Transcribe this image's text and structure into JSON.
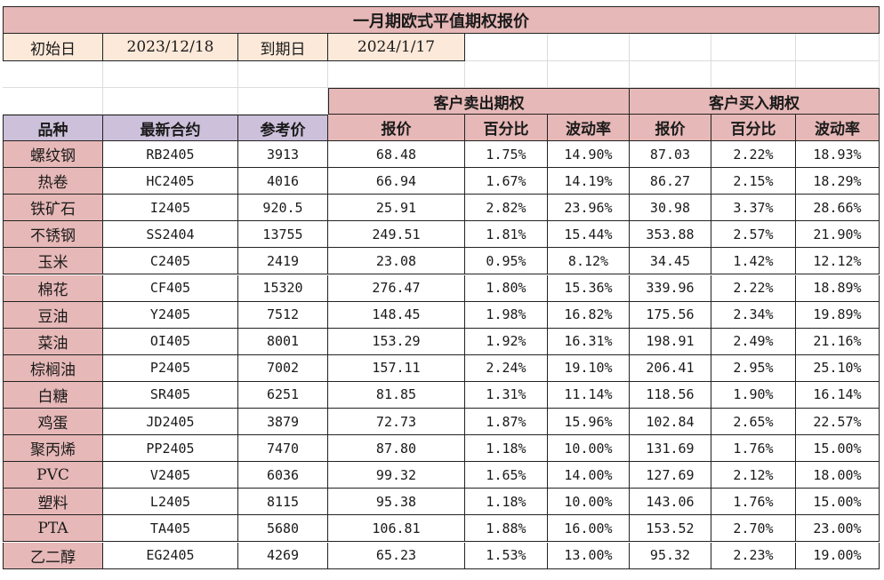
{
  "title": "一月期欧式平值期权报价",
  "meta": {
    "start_label": "初始日",
    "start_value": "2023/12/18",
    "expiry_label": "到期日",
    "expiry_value": "2024/1/17"
  },
  "groups": {
    "sell": "客户卖出期权",
    "buy": "客户买入期权"
  },
  "headers": [
    "品种",
    "最新合约",
    "参考价",
    "报价",
    "百分比",
    "波动率",
    "报价",
    "百分比",
    "波动率"
  ],
  "rows": [
    [
      "螺纹钢",
      "RB2405",
      "3913",
      "68.48",
      "1.75%",
      "14.90%",
      "87.03",
      "2.22%",
      "18.93%"
    ],
    [
      "热卷",
      "HC2405",
      "4016",
      "66.94",
      "1.67%",
      "14.19%",
      "86.27",
      "2.15%",
      "18.29%"
    ],
    [
      "铁矿石",
      "I2405",
      "920.5",
      "25.91",
      "2.82%",
      "23.96%",
      "30.98",
      "3.37%",
      "28.66%"
    ],
    [
      "不锈钢",
      "SS2404",
      "13755",
      "249.51",
      "1.81%",
      "15.44%",
      "353.88",
      "2.57%",
      "21.90%"
    ],
    [
      "玉米",
      "C2405",
      "2419",
      "23.08",
      "0.95%",
      "8.12%",
      "34.45",
      "1.42%",
      "12.12%"
    ],
    [
      "棉花",
      "CF405",
      "15320",
      "276.47",
      "1.80%",
      "15.36%",
      "339.96",
      "2.22%",
      "18.89%"
    ],
    [
      "豆油",
      "Y2405",
      "7512",
      "148.45",
      "1.98%",
      "16.82%",
      "175.56",
      "2.34%",
      "19.89%"
    ],
    [
      "菜油",
      "OI405",
      "8001",
      "153.29",
      "1.92%",
      "16.31%",
      "198.91",
      "2.49%",
      "21.16%"
    ],
    [
      "棕榈油",
      "P2405",
      "7002",
      "157.11",
      "2.24%",
      "19.10%",
      "206.41",
      "2.95%",
      "25.10%"
    ],
    [
      "白糖",
      "SR405",
      "6251",
      "81.85",
      "1.31%",
      "11.14%",
      "118.56",
      "1.90%",
      "16.14%"
    ],
    [
      "鸡蛋",
      "JD2405",
      "3879",
      "72.73",
      "1.87%",
      "15.96%",
      "102.84",
      "2.65%",
      "22.57%"
    ],
    [
      "聚丙烯",
      "PP2405",
      "7470",
      "87.80",
      "1.18%",
      "10.00%",
      "131.69",
      "1.76%",
      "15.00%"
    ],
    [
      "PVC",
      "V2405",
      "6036",
      "99.32",
      "1.65%",
      "14.00%",
      "127.69",
      "2.12%",
      "18.00%"
    ],
    [
      "塑料",
      "L2405",
      "8115",
      "95.38",
      "1.18%",
      "10.00%",
      "143.06",
      "1.76%",
      "15.00%"
    ],
    [
      "PTA",
      "TA405",
      "5680",
      "106.81",
      "1.88%",
      "16.00%",
      "153.52",
      "2.70%",
      "23.00%"
    ],
    [
      "乙二醇",
      "EG2405",
      "4269",
      "65.23",
      "1.53%",
      "13.00%",
      "95.32",
      "2.23%",
      "19.00%"
    ]
  ],
  "colors": {
    "pink": "#e6b8b7",
    "peach": "#fde9d9",
    "lavender": "#ccc0da"
  }
}
